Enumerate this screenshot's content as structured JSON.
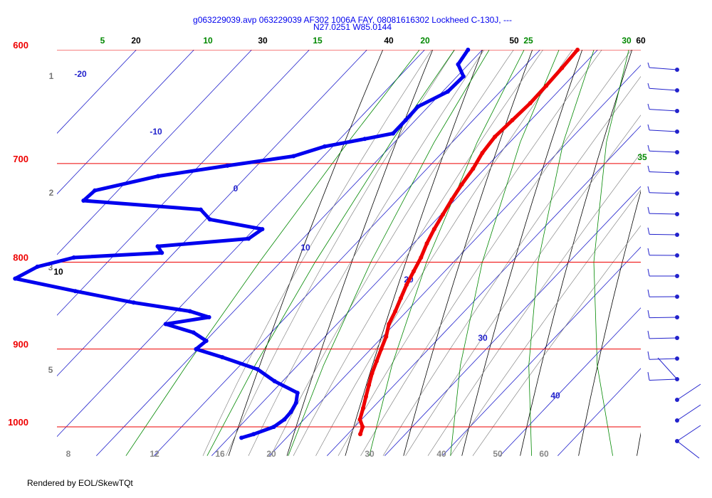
{
  "title_line1": "g063229039.avp 063229039 AF302 1006A FAY, 08081616302 Lockheed C-130J, ---",
  "title_line2": "N27.0251 W85.0144",
  "footer": "Rendered by EOL/SkewTQt",
  "colors": {
    "isobar": "#ee0000",
    "isotherm": "#2222cc",
    "dry_adiabat": "#000000",
    "moist_adiabat": "#777777",
    "mixing_ratio": "#008800",
    "temperature": "#ee0000",
    "dewpoint": "#0000ee",
    "wind": "#2222cc"
  },
  "chart_data": {
    "type": "skew-t",
    "pressure_levels": [
      "600",
      "700",
      "800",
      "900",
      "1000"
    ],
    "isotherm_labels": [
      "-20",
      "-10",
      "0",
      "10",
      "20",
      "30",
      "40"
    ],
    "dry_adiabat_labels": [
      "20",
      "30",
      "40",
      "50",
      "60",
      "10"
    ],
    "mixing_ratio_labels": [
      "5",
      "10",
      "15",
      "20",
      "25",
      "30",
      "35"
    ],
    "height_km_labels": [
      "1",
      "2",
      "3",
      "5"
    ],
    "bottom_labels": [
      "8",
      "12",
      "16",
      "20",
      "30",
      "40",
      "50",
      "60"
    ],
    "series": [
      {
        "name": "temperature",
        "points": [
          [
            600,
            -3.5
          ],
          [
            615,
            -3.2
          ],
          [
            630,
            -3.0
          ],
          [
            645,
            -2.9
          ],
          [
            660,
            -3.2
          ],
          [
            675,
            -3.5
          ],
          [
            690,
            -3.0
          ],
          [
            705,
            -2.0
          ],
          [
            720,
            -1.4
          ],
          [
            735,
            -0.6
          ],
          [
            750,
            0.3
          ],
          [
            765,
            1.2
          ],
          [
            780,
            2.3
          ],
          [
            795,
            3.6
          ],
          [
            810,
            4.6
          ],
          [
            825,
            5.6
          ],
          [
            840,
            6.8
          ],
          [
            855,
            8.0
          ],
          [
            870,
            9.0
          ],
          [
            885,
            10.6
          ],
          [
            900,
            11.8
          ],
          [
            915,
            13.0
          ],
          [
            930,
            14.2
          ],
          [
            945,
            15.6
          ],
          [
            960,
            17.0
          ],
          [
            975,
            18.4
          ],
          [
            990,
            19.7
          ],
          [
            1000,
            21.4
          ],
          [
            1010,
            22.2
          ]
        ]
      },
      {
        "name": "dewpoint",
        "points": [
          [
            600,
            -22.5
          ],
          [
            612,
            -21.8
          ],
          [
            622,
            -18.9
          ],
          [
            635,
            -19.1
          ],
          [
            648,
            -21.8
          ],
          [
            660,
            -21.7
          ],
          [
            672,
            -21.7
          ],
          [
            677,
            -25.7
          ],
          [
            684,
            -31.4
          ],
          [
            693,
            -35.2
          ],
          [
            702,
            -45.1
          ],
          [
            712,
            -55.4
          ],
          [
            726,
            -64.0
          ],
          [
            736,
            -64.3
          ],
          [
            745,
            -42.5
          ],
          [
            755,
            -39.3
          ],
          [
            765,
            -28.6
          ],
          [
            775,
            -29.4
          ],
          [
            783,
            -43.9
          ],
          [
            790,
            -42.1
          ],
          [
            795,
            -56.6
          ],
          [
            805,
            -61.4
          ],
          [
            818,
            -63.3
          ],
          [
            832,
            -50.8
          ],
          [
            845,
            -38.8
          ],
          [
            855,
            -27.6
          ],
          [
            862,
            -23.3
          ],
          [
            870,
            -29.7
          ],
          [
            880,
            -23.5
          ],
          [
            890,
            -19.9
          ],
          [
            900,
            -20.3
          ],
          [
            910,
            -14.4
          ],
          [
            925,
            -6.3
          ],
          [
            940,
            -1.4
          ],
          [
            955,
            4.5
          ],
          [
            968,
            5.9
          ],
          [
            980,
            6.5
          ],
          [
            990,
            6.6
          ],
          [
            1000,
            6.0
          ],
          [
            1010,
            3.7
          ],
          [
            1015,
            2.2
          ]
        ]
      }
    ],
    "wind_barbs_count": 19
  }
}
